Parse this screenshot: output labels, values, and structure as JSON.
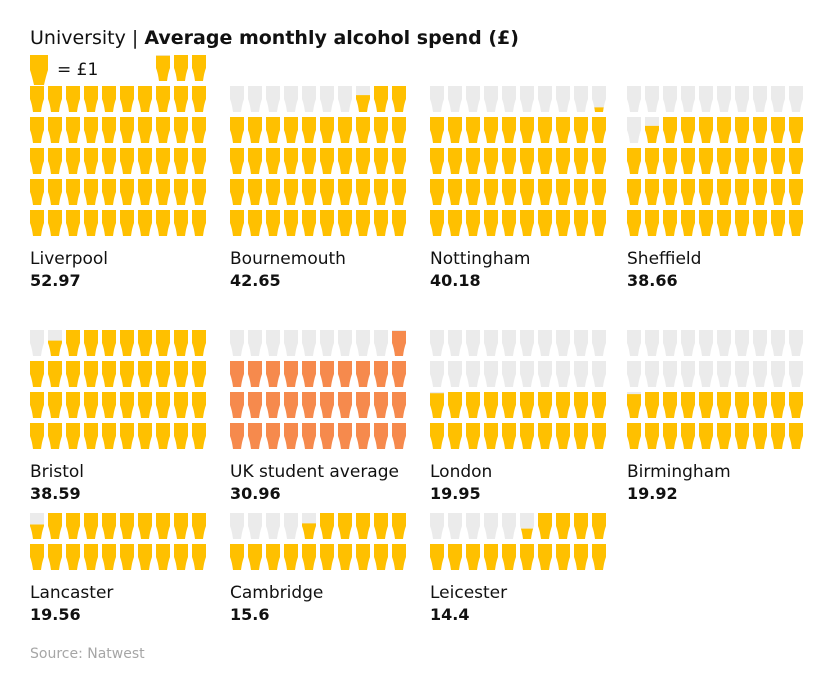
{
  "title": {
    "prefix": "University",
    "separator": "|",
    "main": "Average monthly alcohol spend (£)"
  },
  "legend": {
    "icon": "pint-glass-icon",
    "text": "= £1"
  },
  "source": "Source: Natwest",
  "colors": {
    "filled": "#ffc000",
    "empty": "#ebebeb",
    "highlight": "#f68a4d"
  },
  "chart_data": {
    "type": "pictograph",
    "title": "Average monthly alcohol spend (£)",
    "unit": "£1 per glass",
    "panels": [
      {
        "name": "Liverpool",
        "value": 52.97,
        "value_label": "52.97"
      },
      {
        "name": "Bournemouth",
        "value": 42.65,
        "value_label": "42.65"
      },
      {
        "name": "Nottingham",
        "value": 40.18,
        "value_label": "40.18"
      },
      {
        "name": "Sheffield",
        "value": 38.66,
        "value_label": "38.66"
      },
      {
        "name": "Bristol",
        "value": 38.59,
        "value_label": "38.59"
      },
      {
        "name": "UK student average",
        "value": 30.96,
        "value_label": "30.96",
        "highlight": true
      },
      {
        "name": "London",
        "value": 19.95,
        "value_label": "19.95"
      },
      {
        "name": "Birmingham",
        "value": 19.92,
        "value_label": "19.92"
      },
      {
        "name": "Lancaster",
        "value": 19.56,
        "value_label": "19.56"
      },
      {
        "name": "Cambridge",
        "value": 15.6,
        "value_label": "15.6"
      },
      {
        "name": "Leicester",
        "value": 14.4,
        "value_label": "14.4"
      }
    ]
  }
}
